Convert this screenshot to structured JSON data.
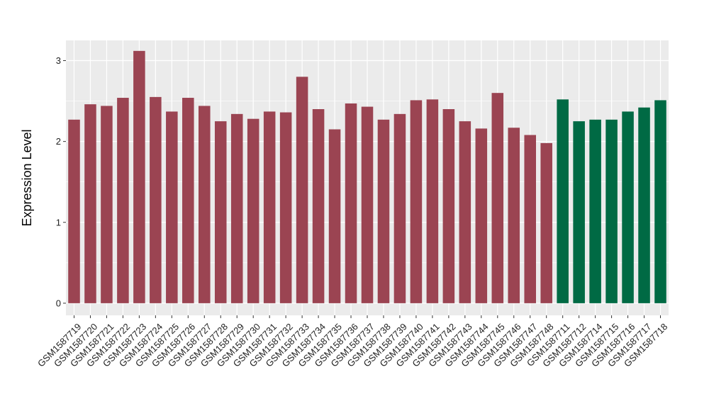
{
  "chart_data": {
    "type": "bar",
    "title": "",
    "xlabel": "",
    "ylabel": "Expression Level",
    "ylim": [
      -0.15,
      3.25
    ],
    "yticks": [
      0,
      1,
      2,
      3
    ],
    "grid": true,
    "legend": "none",
    "categories": [
      "GSM1587719",
      "GSM1587720",
      "GSM1587721",
      "GSM1587722",
      "GSM1587723",
      "GSM1587724",
      "GSM1587725",
      "GSM1587726",
      "GSM1587727",
      "GSM1587728",
      "GSM1587729",
      "GSM1587730",
      "GSM1587731",
      "GSM1587732",
      "GSM1587733",
      "GSM1587734",
      "GSM1587735",
      "GSM1587736",
      "GSM1587737",
      "GSM1587738",
      "GSM1587739",
      "GSM1587740",
      "GSM1587741",
      "GSM1587742",
      "GSM1587743",
      "GSM1587744",
      "GSM1587745",
      "GSM1587746",
      "GSM1587747",
      "GSM1587748",
      "GSM1587711",
      "GSM1587712",
      "GSM1587714",
      "GSM1587715",
      "GSM1587716",
      "GSM1587717",
      "GSM1587718"
    ],
    "values": [
      2.27,
      2.46,
      2.44,
      2.54,
      3.12,
      2.55,
      2.37,
      2.54,
      2.44,
      2.25,
      2.34,
      2.28,
      2.37,
      2.36,
      2.8,
      2.4,
      2.15,
      2.47,
      2.43,
      2.27,
      2.34,
      2.51,
      2.52,
      2.4,
      2.25,
      2.16,
      2.6,
      2.17,
      2.08,
      1.98,
      2.52,
      2.25,
      2.27,
      2.27,
      2.37,
      2.42,
      2.51
    ],
    "groups": [
      "a",
      "a",
      "a",
      "a",
      "a",
      "a",
      "a",
      "a",
      "a",
      "a",
      "a",
      "a",
      "a",
      "a",
      "a",
      "a",
      "a",
      "a",
      "a",
      "a",
      "a",
      "a",
      "a",
      "a",
      "a",
      "a",
      "a",
      "a",
      "a",
      "a",
      "b",
      "b",
      "b",
      "b",
      "b",
      "b",
      "b"
    ],
    "colors": {
      "a": "#9B4452",
      "b": "#006A44"
    },
    "panel_color": "#EBEBEB",
    "grid_color": "#FFFFFF"
  }
}
